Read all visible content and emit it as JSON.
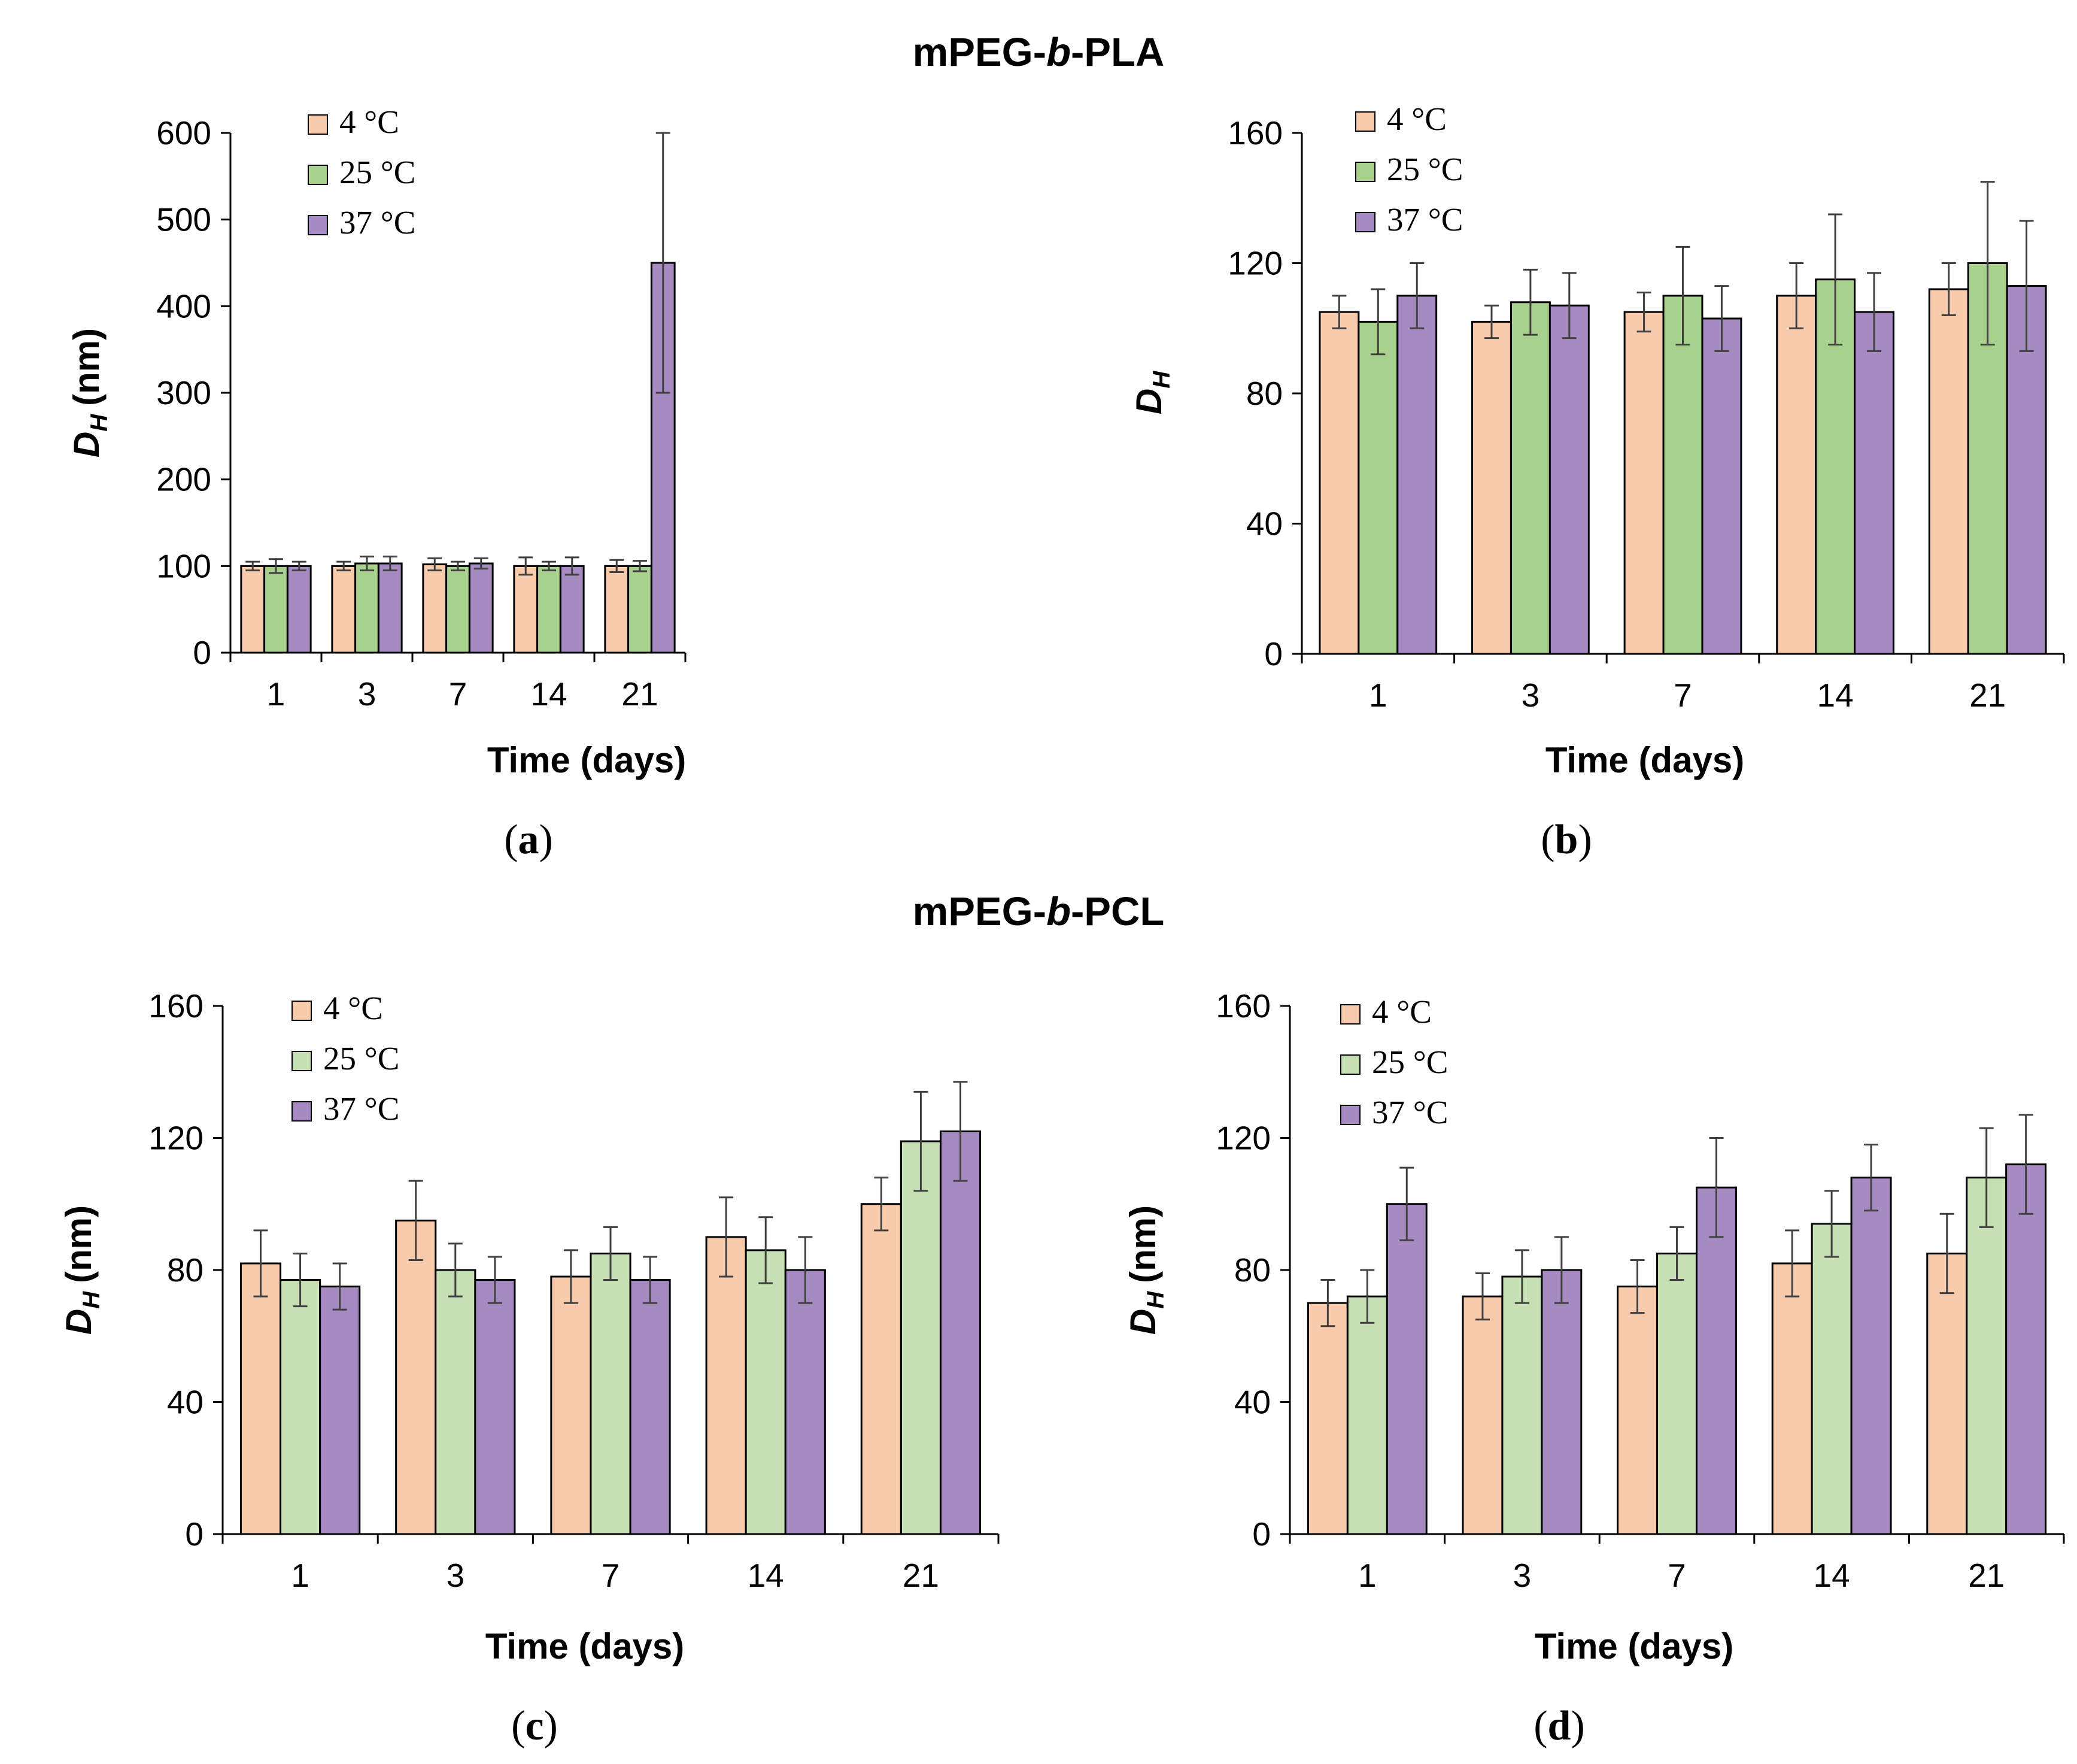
{
  "figure": {
    "section_titles": [
      {
        "prefix": "mPEG-",
        "italic": "b",
        "suffix": "-PLA"
      },
      {
        "prefix": "mPEG-",
        "italic": "b",
        "suffix": "-PCL"
      }
    ]
  },
  "chart_data": [
    {
      "type": "bar",
      "panel_label": "a",
      "section": "mPEG-b-PLA",
      "categories": [
        "1",
        "3",
        "7",
        "14",
        "21"
      ],
      "xlabel": "Time (days)",
      "ylabel_symbol": "D",
      "ylabel_subscript": "H",
      "ylabel_unit": "(nm)",
      "ylim": [
        0,
        600
      ],
      "yticks": [
        0,
        100,
        200,
        300,
        400,
        500,
        600
      ],
      "series": [
        {
          "name": "4 °C",
          "color": "#F8CBAD",
          "values": [
            100,
            100,
            102,
            100,
            100
          ],
          "errors": [
            5,
            5,
            7,
            10,
            7
          ]
        },
        {
          "name": "25 °C",
          "color": "#A9D18E",
          "values": [
            100,
            103,
            100,
            100,
            100
          ],
          "errors": [
            8,
            8,
            5,
            5,
            6
          ]
        },
        {
          "name": "37 °C",
          "color": "#A68BC2",
          "values": [
            100,
            103,
            103,
            100,
            450
          ],
          "errors": [
            5,
            8,
            6,
            10,
            150
          ]
        }
      ]
    },
    {
      "type": "bar",
      "panel_label": "b",
      "section": "mPEG-b-PLA",
      "categories": [
        "1",
        "3",
        "7",
        "14",
        "21"
      ],
      "xlabel": "Time (days)",
      "ylabel_symbol": "D",
      "ylabel_subscript": "H",
      "ylabel_unit": "",
      "ylim": [
        0,
        160
      ],
      "yticks": [
        0,
        40,
        80,
        120,
        160
      ],
      "series": [
        {
          "name": "4 °C",
          "color": "#F8CBAD",
          "values": [
            105,
            102,
            105,
            110,
            112
          ],
          "errors": [
            5,
            5,
            6,
            10,
            8
          ]
        },
        {
          "name": "25 °C",
          "color": "#A9D18E",
          "values": [
            102,
            108,
            110,
            115,
            120
          ],
          "errors": [
            10,
            10,
            15,
            20,
            25
          ]
        },
        {
          "name": "37 °C",
          "color": "#A68BC2",
          "values": [
            110,
            107,
            103,
            105,
            113
          ],
          "errors": [
            10,
            10,
            10,
            12,
            20
          ]
        }
      ]
    },
    {
      "type": "bar",
      "panel_label": "c",
      "section": "mPEG-b-PCL",
      "categories": [
        "1",
        "3",
        "7",
        "14",
        "21"
      ],
      "xlabel": "Time (days)",
      "ylabel_symbol": "D",
      "ylabel_subscript": "H",
      "ylabel_unit": "(nm)",
      "ylim": [
        0,
        160
      ],
      "yticks": [
        0,
        40,
        80,
        120,
        160
      ],
      "series": [
        {
          "name": "4 °C",
          "color": "#F8CBAD",
          "values": [
            82,
            95,
            78,
            90,
            100
          ],
          "errors": [
            10,
            12,
            8,
            12,
            8
          ]
        },
        {
          "name": "25 °C",
          "color": "#C6E0B4",
          "values": [
            77,
            80,
            85,
            86,
            119
          ],
          "errors": [
            8,
            8,
            8,
            10,
            15
          ]
        },
        {
          "name": "37 °C",
          "color": "#A68BC2",
          "values": [
            75,
            77,
            77,
            80,
            122
          ],
          "errors": [
            7,
            7,
            7,
            10,
            15
          ]
        }
      ]
    },
    {
      "type": "bar",
      "panel_label": "d",
      "section": "mPEG-b-PCL",
      "categories": [
        "1",
        "3",
        "7",
        "14",
        "21"
      ],
      "xlabel": "Time (days)",
      "ylabel_symbol": "D",
      "ylabel_subscript": "H",
      "ylabel_unit": "(nm)",
      "ylim": [
        0,
        160
      ],
      "yticks": [
        0,
        40,
        80,
        120,
        160
      ],
      "series": [
        {
          "name": "4 °C",
          "color": "#F8CBAD",
          "values": [
            70,
            72,
            75,
            82,
            85
          ],
          "errors": [
            7,
            7,
            8,
            10,
            12
          ]
        },
        {
          "name": "25 °C",
          "color": "#C6E0B4",
          "values": [
            72,
            78,
            85,
            94,
            108
          ],
          "errors": [
            8,
            8,
            8,
            10,
            15
          ]
        },
        {
          "name": "37 °C",
          "color": "#A68BC2",
          "values": [
            100,
            80,
            105,
            108,
            112
          ],
          "errors": [
            11,
            10,
            15,
            10,
            15
          ]
        }
      ]
    }
  ]
}
